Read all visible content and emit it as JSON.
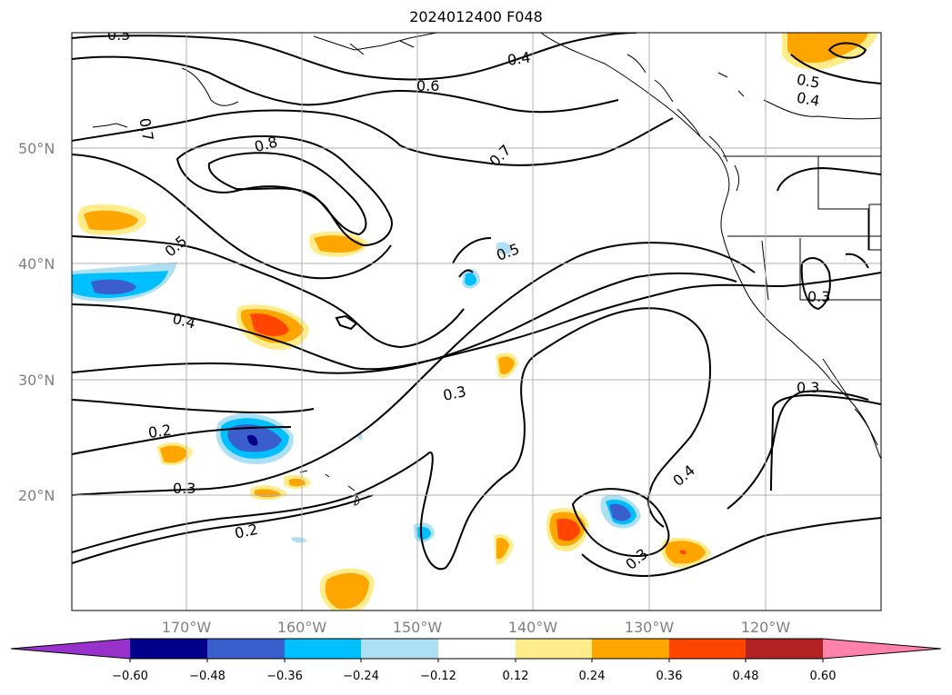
{
  "title": "2024012400 F048",
  "map": {
    "lat_labels": [
      "50°N",
      "40°N",
      "30°N",
      "20°N"
    ],
    "lon_labels": [
      "170°W",
      "160°W",
      "150°W",
      "140°W",
      "130°W",
      "120°W"
    ],
    "contour_labels": [
      "0.5",
      "0.4",
      "0.6",
      "0.7",
      "0.8",
      "0.7",
      "0.5",
      "0.5",
      "0.4",
      "0.2",
      "0.3",
      "0.2",
      "0.3",
      "0.3",
      "0.3",
      "0.4",
      "0.3",
      "0.5",
      "0.4"
    ],
    "colorbar": {
      "tick_labels": [
        "−0.60",
        "−0.48",
        "−0.36",
        "−0.24",
        "−0.12",
        "0.12",
        "0.24",
        "0.36",
        "0.48",
        "0.60"
      ],
      "colors": [
        "#9932CC",
        "#00008B",
        "#3A5FCD",
        "#00BFFF",
        "#ADE0F5",
        "#FFFFFF",
        "#FFEC8B",
        "#FFA500",
        "#FF4500",
        "#B22222",
        "#FF82AB"
      ]
    }
  }
}
